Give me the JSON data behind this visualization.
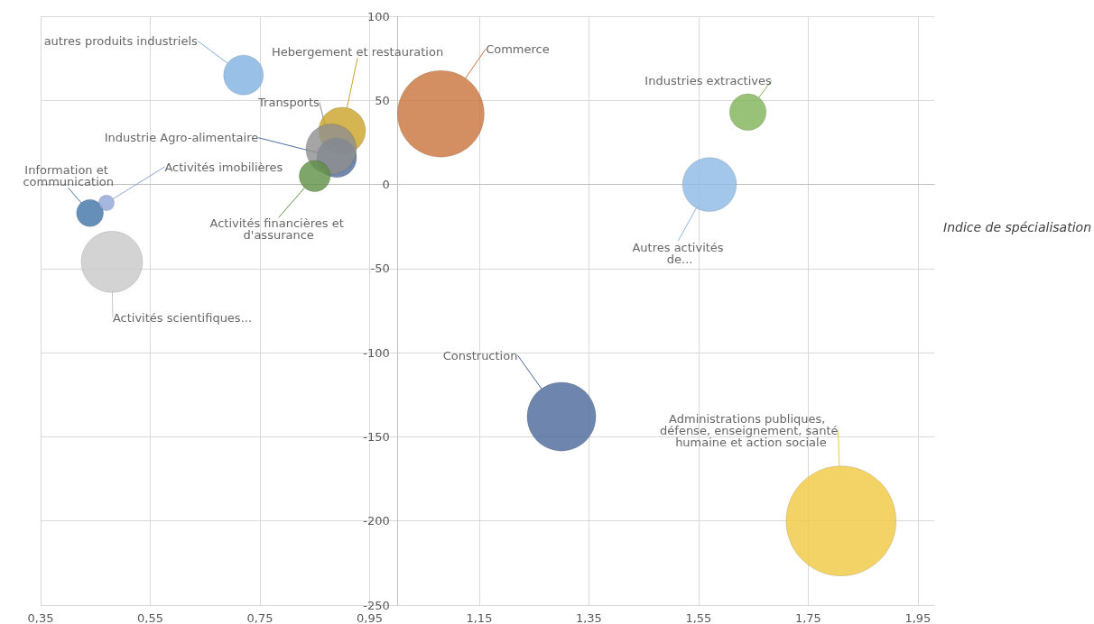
{
  "chart_data": {
    "type": "bubble",
    "xlabel": "Indice de spécialisation",
    "xlim": [
      0.35,
      1.98
    ],
    "ylim": [
      -250,
      100
    ],
    "xticks": [
      {
        "value": 0.35,
        "label": "0,35"
      },
      {
        "value": 0.55,
        "label": "0,55"
      },
      {
        "value": 0.75,
        "label": "0,75"
      },
      {
        "value": 0.95,
        "label": "0,95"
      },
      {
        "value": 1.15,
        "label": "1,15"
      },
      {
        "value": 1.35,
        "label": "1,35"
      },
      {
        "value": 1.55,
        "label": "1,55"
      },
      {
        "value": 1.75,
        "label": "1,75"
      },
      {
        "value": 1.95,
        "label": "1,95"
      }
    ],
    "yticks": [
      -250,
      -200,
      -150,
      -100,
      -50,
      0,
      50,
      100
    ],
    "grid": true,
    "legend": false,
    "marker": "circle",
    "series": [
      {
        "name": "autres produits industriels",
        "color": "#7fb0e0",
        "x": [
          0.72
        ],
        "values": [
          65
        ],
        "sizes": [
          0.13
        ]
      },
      {
        "name": "Hebergement et restauration",
        "color": "#c9a227",
        "x": [
          0.9
        ],
        "values": [
          32
        ],
        "sizes": [
          0.18
        ]
      },
      {
        "name": "Industrie Agro-alimentaire",
        "color": "#4f6d9e",
        "x": [
          0.89
        ],
        "values": [
          16
        ],
        "sizes": [
          0.13
        ]
      },
      {
        "name": "Transports",
        "color": "#8f8f8f",
        "x": [
          0.88
        ],
        "values": [
          21
        ],
        "sizes": [
          0.21
        ]
      },
      {
        "name": "Activités financières et d'assurance",
        "color": "#5e8f45",
        "x": [
          0.85
        ],
        "values": [
          5
        ],
        "sizes": [
          0.08
        ]
      },
      {
        "name": "Information et communication",
        "color": "#3f72a8",
        "x": [
          0.44
        ],
        "values": [
          -17
        ],
        "sizes": [
          0.06
        ]
      },
      {
        "name": "Activités imobilières",
        "color": "#8ea4d8",
        "x": [
          0.47
        ],
        "values": [
          -11
        ],
        "sizes": [
          0.02
        ]
      },
      {
        "name": "Activités scientifiques...",
        "color": "#c8c8c8",
        "x": [
          0.48
        ],
        "values": [
          -46
        ],
        "sizes": [
          0.31
        ]
      },
      {
        "name": "Commerce",
        "color": "#c8733a",
        "x": [
          1.08
        ],
        "values": [
          42
        ],
        "sizes": [
          0.62
        ]
      },
      {
        "name": "Industries extractives",
        "color": "#7db356",
        "x": [
          1.64
        ],
        "values": [
          43
        ],
        "sizes": [
          0.11
        ]
      },
      {
        "name": "Autres activités de...",
        "color": "#8cb8e6",
        "x": [
          1.57
        ],
        "values": [
          0
        ],
        "sizes": [
          0.24
        ]
      },
      {
        "name": "Construction",
        "color": "#4a6699",
        "x": [
          1.3
        ],
        "values": [
          -138
        ],
        "sizes": [
          0.39
        ]
      },
      {
        "name": "Administrations publiques, défense, enseignement, santé humaine et action sociale",
        "color": "#f0c840",
        "x": [
          1.81
        ],
        "values": [
          -200
        ],
        "sizes": [
          1
        ]
      }
    ]
  }
}
